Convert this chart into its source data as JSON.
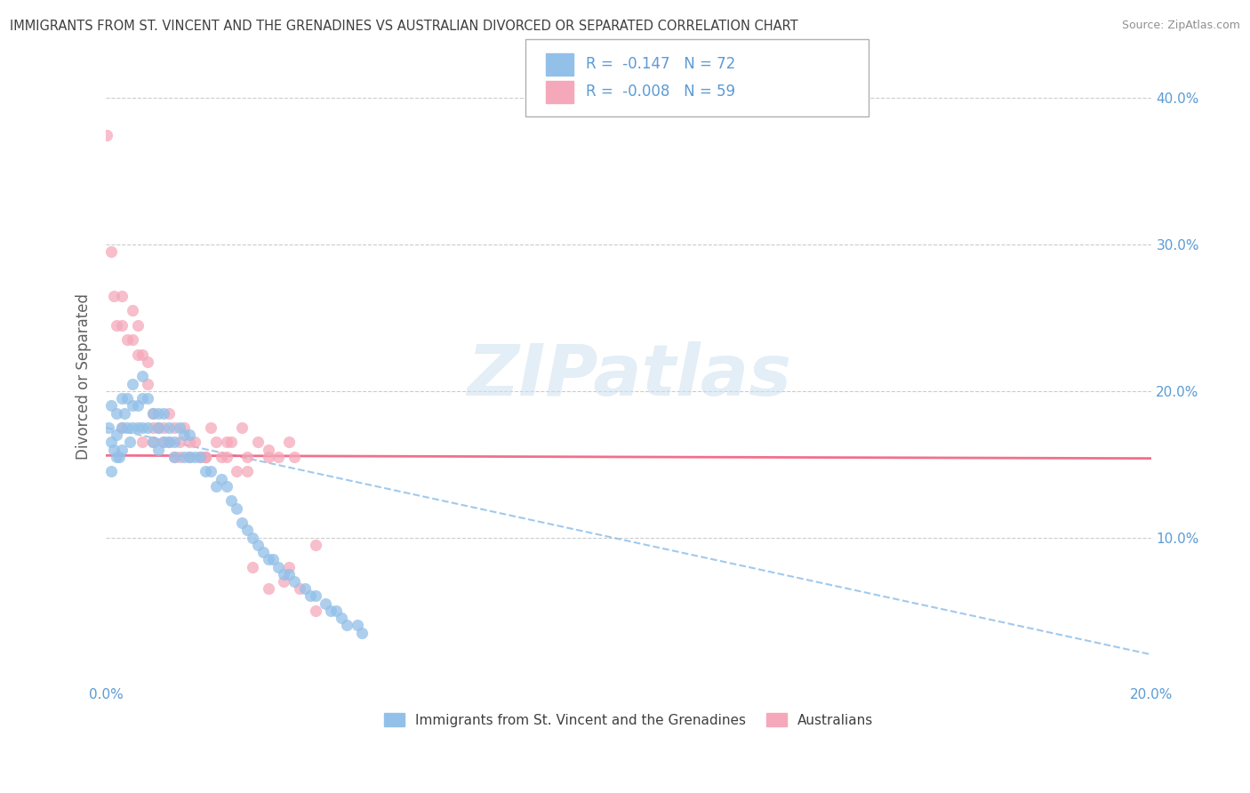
{
  "title": "IMMIGRANTS FROM ST. VINCENT AND THE GRENADINES VS AUSTRALIAN DIVORCED OR SEPARATED CORRELATION CHART",
  "source": "Source: ZipAtlas.com",
  "ylabel": "Divorced or Separated",
  "legend_label1": "Immigrants from St. Vincent and the Grenadines",
  "legend_label2": "Australians",
  "r1": "-0.147",
  "n1": "72",
  "r2": "-0.008",
  "n2": "59",
  "xmin": 0.0,
  "xmax": 0.2,
  "ymin": 0.0,
  "ymax": 0.42,
  "color_blue": "#92C0E8",
  "color_pink": "#F5A8BA",
  "color_blue_line": "#92C0E8",
  "color_pink_line": "#F06080",
  "title_color": "#404040",
  "source_color": "#909090",
  "tick_color": "#5b9bd5",
  "ylabel_color": "#606060",
  "blue_scatter_x": [
    0.0005,
    0.001,
    0.001,
    0.0015,
    0.002,
    0.002,
    0.0025,
    0.003,
    0.003,
    0.003,
    0.0035,
    0.004,
    0.004,
    0.0045,
    0.005,
    0.005,
    0.005,
    0.006,
    0.006,
    0.007,
    0.007,
    0.007,
    0.008,
    0.008,
    0.009,
    0.009,
    0.01,
    0.01,
    0.01,
    0.011,
    0.011,
    0.012,
    0.012,
    0.013,
    0.013,
    0.014,
    0.015,
    0.015,
    0.016,
    0.016,
    0.017,
    0.018,
    0.019,
    0.02,
    0.021,
    0.022,
    0.023,
    0.024,
    0.025,
    0.026,
    0.027,
    0.028,
    0.029,
    0.03,
    0.031,
    0.032,
    0.033,
    0.034,
    0.035,
    0.036,
    0.038,
    0.039,
    0.04,
    0.042,
    0.043,
    0.044,
    0.045,
    0.046,
    0.048,
    0.049,
    0.001,
    0.002
  ],
  "blue_scatter_y": [
    0.175,
    0.19,
    0.165,
    0.16,
    0.185,
    0.17,
    0.155,
    0.195,
    0.175,
    0.16,
    0.185,
    0.195,
    0.175,
    0.165,
    0.205,
    0.19,
    0.175,
    0.19,
    0.175,
    0.21,
    0.195,
    0.175,
    0.195,
    0.175,
    0.185,
    0.165,
    0.185,
    0.175,
    0.16,
    0.185,
    0.165,
    0.175,
    0.165,
    0.165,
    0.155,
    0.175,
    0.17,
    0.155,
    0.17,
    0.155,
    0.155,
    0.155,
    0.145,
    0.145,
    0.135,
    0.14,
    0.135,
    0.125,
    0.12,
    0.11,
    0.105,
    0.1,
    0.095,
    0.09,
    0.085,
    0.085,
    0.08,
    0.075,
    0.075,
    0.07,
    0.065,
    0.06,
    0.06,
    0.055,
    0.05,
    0.05,
    0.045,
    0.04,
    0.04,
    0.035,
    0.145,
    0.155
  ],
  "pink_scatter_x": [
    0.0002,
    0.001,
    0.0015,
    0.002,
    0.003,
    0.003,
    0.004,
    0.005,
    0.005,
    0.006,
    0.006,
    0.007,
    0.008,
    0.008,
    0.009,
    0.009,
    0.01,
    0.011,
    0.012,
    0.012,
    0.013,
    0.013,
    0.014,
    0.015,
    0.016,
    0.017,
    0.018,
    0.019,
    0.02,
    0.021,
    0.023,
    0.024,
    0.026,
    0.027,
    0.029,
    0.031,
    0.033,
    0.035,
    0.036,
    0.003,
    0.007,
    0.009,
    0.011,
    0.014,
    0.016,
    0.019,
    0.022,
    0.025,
    0.028,
    0.031,
    0.034,
    0.037,
    0.04,
    0.019,
    0.023,
    0.027,
    0.031,
    0.035,
    0.04
  ],
  "pink_scatter_y": [
    0.375,
    0.295,
    0.265,
    0.245,
    0.265,
    0.245,
    0.235,
    0.255,
    0.235,
    0.245,
    0.225,
    0.225,
    0.22,
    0.205,
    0.185,
    0.175,
    0.175,
    0.175,
    0.185,
    0.165,
    0.175,
    0.155,
    0.165,
    0.175,
    0.165,
    0.165,
    0.155,
    0.155,
    0.175,
    0.165,
    0.165,
    0.165,
    0.175,
    0.155,
    0.165,
    0.16,
    0.155,
    0.165,
    0.155,
    0.175,
    0.165,
    0.165,
    0.165,
    0.155,
    0.155,
    0.155,
    0.155,
    0.145,
    0.08,
    0.065,
    0.07,
    0.065,
    0.05,
    0.155,
    0.155,
    0.145,
    0.155,
    0.08,
    0.095
  ],
  "blue_line_x": [
    0.0,
    0.2
  ],
  "blue_line_y": [
    0.175,
    0.02
  ],
  "pink_line_x": [
    0.0,
    0.2
  ],
  "pink_line_y": [
    0.156,
    0.154
  ],
  "x_ticks": [
    0.0,
    0.05,
    0.1,
    0.15,
    0.2
  ],
  "x_tick_labels": [
    "0.0%",
    "",
    "",
    "",
    "20.0%"
  ],
  "y_ticks": [
    0.1,
    0.2,
    0.3,
    0.4
  ],
  "y_tick_labels": [
    "10.0%",
    "20.0%",
    "30.0%",
    "40.0%"
  ],
  "watermark": "ZIPatlas"
}
